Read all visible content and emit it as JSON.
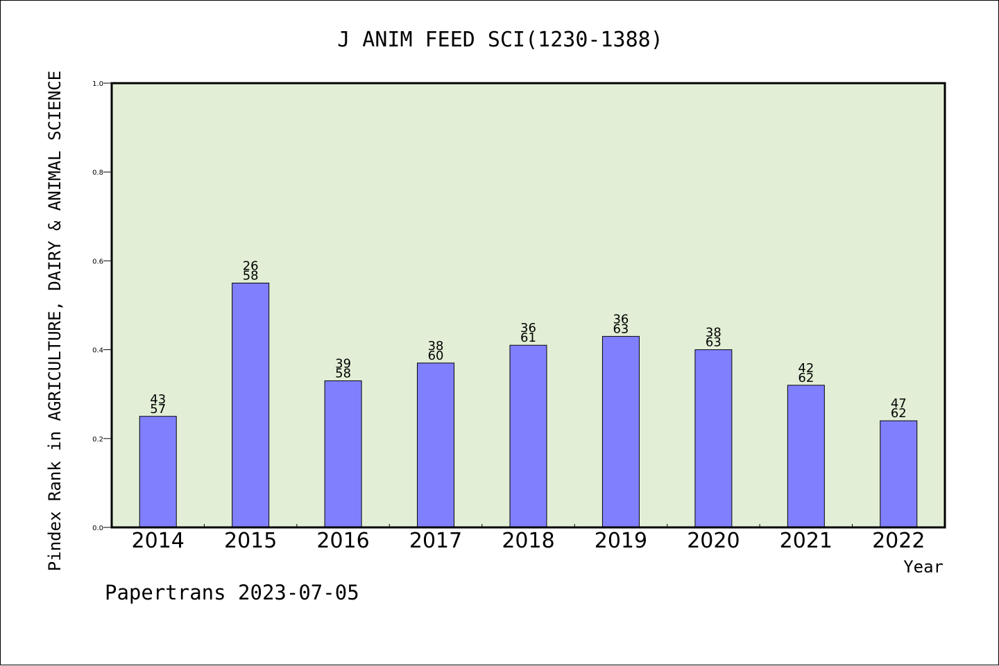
{
  "chart_data": {
    "type": "bar",
    "title": "J ANIM FEED SCI(1230-1388)",
    "ylabel": "Pindex Rank in AGRICULTURE, DAIRY & ANIMAL SCIENCE",
    "xlabel": "Year",
    "footer": "Papertrans 2023-07-05",
    "categories": [
      "2014",
      "2015",
      "2016",
      "2017",
      "2018",
      "2019",
      "2020",
      "2021",
      "2022"
    ],
    "values": [
      0.25,
      0.55,
      0.33,
      0.37,
      0.41,
      0.43,
      0.4,
      0.32,
      0.24
    ],
    "rank": [
      "43",
      "26",
      "39",
      "38",
      "36",
      "36",
      "38",
      "42",
      "47"
    ],
    "total": [
      "57",
      "58",
      "58",
      "60",
      "61",
      "63",
      "63",
      "62",
      "62"
    ],
    "ylim": [
      0,
      1.0
    ],
    "yticks": [
      "0.0",
      "0.2",
      "0.4",
      "0.6",
      "0.8",
      "1.0"
    ],
    "grid": false,
    "colors": {
      "bar": "#8080ff",
      "plot_background": "#e2efd6",
      "axis": "#000000"
    }
  }
}
